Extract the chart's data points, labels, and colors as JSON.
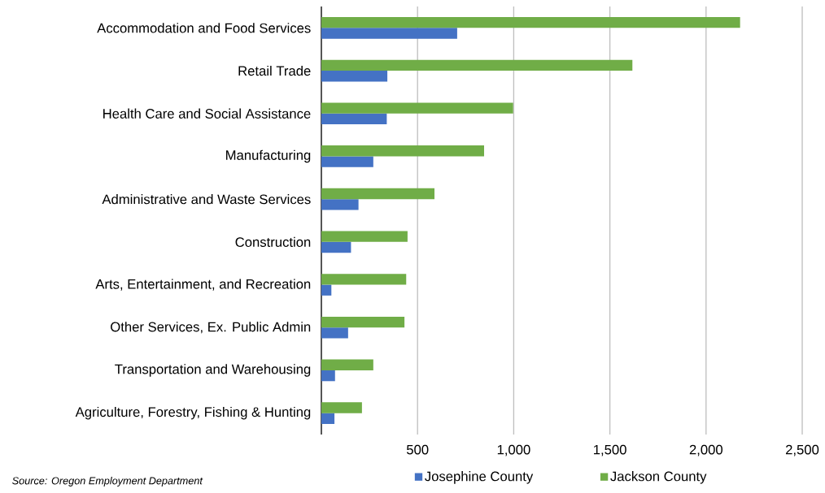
{
  "chart_data": {
    "type": "bar",
    "orientation": "horizontal",
    "categories": [
      "Accommodation and Food Services",
      "Retail Trade",
      "Health Care and Social Assistance",
      "Manufacturing",
      "Administrative and Waste Services",
      "Construction",
      "Arts, Entertainment, and Recreation",
      "Other Services, Ex. Public Admin",
      "Transportation and Warehousing",
      "Agriculture, Forestry, Fishing & Hunting"
    ],
    "series": [
      {
        "name": "Josephine County",
        "color": "#4472c4",
        "values": [
          706,
          343,
          340,
          270,
          193,
          154,
          52,
          139,
          71,
          68
        ]
      },
      {
        "name": "Jackson County",
        "color": "#70ad47",
        "values": [
          2177,
          1617,
          997,
          846,
          588,
          448,
          441,
          432,
          270,
          211
        ]
      }
    ],
    "xlim": [
      0,
      2500
    ],
    "xticks": [
      500,
      {
        "value": 1000,
        "label": "1,000"
      },
      {
        "value": 1500,
        "label": "1,500"
      },
      {
        "value": 2000,
        "label": "2,000"
      },
      {
        "value": 2500,
        "label": "2,500"
      }
    ],
    "grid": "x",
    "legend": "bottom",
    "annotations": [
      "Source: Oregon Employment Department"
    ]
  }
}
